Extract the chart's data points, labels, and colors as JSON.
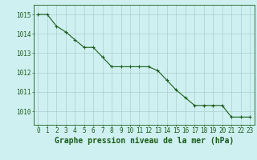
{
  "x": [
    0,
    1,
    2,
    3,
    4,
    5,
    6,
    7,
    8,
    9,
    10,
    11,
    12,
    13,
    14,
    15,
    16,
    17,
    18,
    19,
    20,
    21,
    22,
    23
  ],
  "y": [
    1015.0,
    1015.0,
    1014.4,
    1014.1,
    1013.7,
    1013.3,
    1013.3,
    1012.8,
    1012.3,
    1012.3,
    1012.3,
    1012.3,
    1012.3,
    1012.1,
    1011.6,
    1011.1,
    1010.7,
    1010.3,
    1010.3,
    1010.3,
    1010.3,
    1009.7,
    1009.7,
    1009.7
  ],
  "xlabel": "Graphe pression niveau de la mer (hPa)",
  "xlim": [
    -0.5,
    23.5
  ],
  "ylim": [
    1009.3,
    1015.5
  ],
  "yticks": [
    1010,
    1011,
    1012,
    1013,
    1014,
    1015
  ],
  "xticks": [
    0,
    1,
    2,
    3,
    4,
    5,
    6,
    7,
    8,
    9,
    10,
    11,
    12,
    13,
    14,
    15,
    16,
    17,
    18,
    19,
    20,
    21,
    22,
    23
  ],
  "line_color": "#1a5c1a",
  "marker": "+",
  "marker_size": 3.5,
  "marker_linewidth": 0.8,
  "line_width": 0.8,
  "bg_color": "#cff0f0",
  "grid_color": "#aacece",
  "xlabel_color": "#1a5c1a",
  "tick_color": "#1a5c1a",
  "spine_color": "#1a5c1a",
  "xlabel_fontsize": 7,
  "tick_fontsize": 5.5,
  "xlabel_bold": true
}
